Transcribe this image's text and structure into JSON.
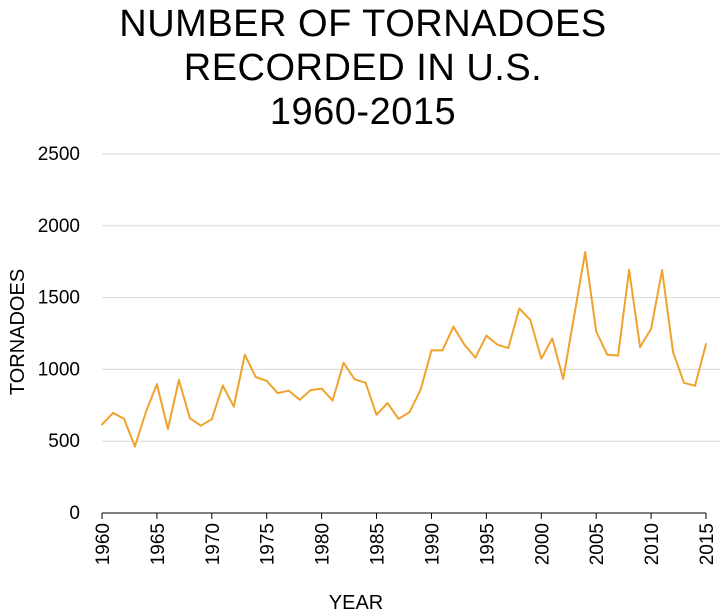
{
  "title_lines": [
    "NUMBER OF TORNADOES",
    "RECORDED IN U.S.",
    "1960-2015"
  ],
  "chart_data": {
    "type": "line",
    "title": "NUMBER OF TORNADOES RECORDED IN U.S. 1960-2015",
    "xlabel": "YEAR",
    "ylabel": "TORNADOES",
    "xlim": [
      1960,
      2015
    ],
    "ylim": [
      0,
      2500
    ],
    "x_ticks": [
      "1960",
      "1965",
      "1970",
      "1975",
      "1980",
      "1985",
      "1990",
      "1995",
      "2000",
      "2005",
      "2010",
      "2015"
    ],
    "y_ticks": [
      "0",
      "500",
      "1000",
      "1500",
      "2000",
      "2500"
    ],
    "grid": "horizontal",
    "line_color": "#f0a22e",
    "grid_color": "#d9d9d9",
    "x": [
      1960,
      1961,
      1962,
      1963,
      1964,
      1965,
      1966,
      1967,
      1968,
      1969,
      1970,
      1971,
      1972,
      1973,
      1974,
      1975,
      1976,
      1977,
      1978,
      1979,
      1980,
      1981,
      1982,
      1983,
      1984,
      1985,
      1986,
      1987,
      1988,
      1989,
      1990,
      1991,
      1992,
      1993,
      1994,
      1995,
      1996,
      1997,
      1998,
      1999,
      2000,
      2001,
      2002,
      2003,
      2004,
      2005,
      2006,
      2007,
      2008,
      2009,
      2010,
      2011,
      2012,
      2013,
      2014,
      2015
    ],
    "values": [
      616,
      697,
      657,
      463,
      704,
      897,
      585,
      926,
      660,
      608,
      653,
      888,
      741,
      1102,
      947,
      920,
      835,
      852,
      788,
      856,
      866,
      783,
      1046,
      931,
      907,
      684,
      765,
      656,
      702,
      856,
      1133,
      1132,
      1297,
      1173,
      1082,
      1235,
      1173,
      1148,
      1424,
      1345,
      1075,
      1215,
      934,
      1374,
      1817,
      1264,
      1103,
      1096,
      1692,
      1156,
      1282,
      1691,
      1119,
      907,
      886,
      1177
    ]
  }
}
